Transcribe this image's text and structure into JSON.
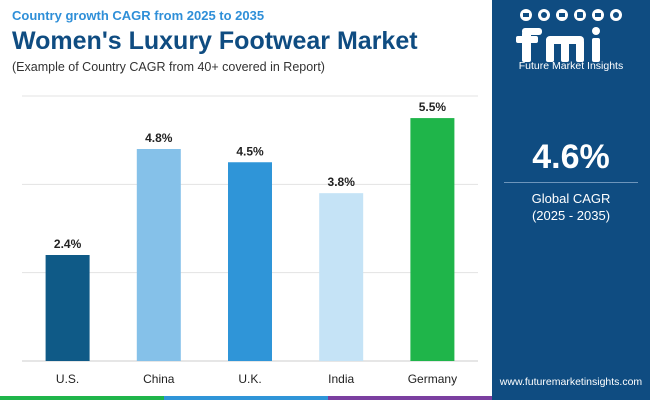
{
  "header": {
    "subtitle": "Country growth CAGR from 2025 to 2035",
    "title": "Women's Luxury Footwear Market",
    "note": "(Example of Country CAGR from 40+ covered in Report)"
  },
  "chart_data": {
    "type": "bar",
    "categories": [
      "U.S.",
      "China",
      "U.K.",
      "India",
      "Germany"
    ],
    "values": [
      2.4,
      4.8,
      4.5,
      3.8,
      5.5
    ],
    "value_labels": [
      "2.4%",
      "4.8%",
      "4.5%",
      "3.8%",
      "5.5%"
    ],
    "colors": [
      "#0f5a87",
      "#85c1e9",
      "#2f95d8",
      "#c5e3f6",
      "#1fb54a"
    ],
    "ylim": [
      0,
      6
    ],
    "grid": true,
    "unit": "%"
  },
  "panel": {
    "logo_text": "Future Market Insights",
    "cagr_value": "4.6%",
    "cagr_label_line1": "Global CAGR",
    "cagr_label_line2": "(2025 - 2035)",
    "website": "www.futuremarketinsights.com"
  },
  "stripe_colors": [
    "#1fb54a",
    "#2f95d8",
    "#7b3fa0"
  ]
}
